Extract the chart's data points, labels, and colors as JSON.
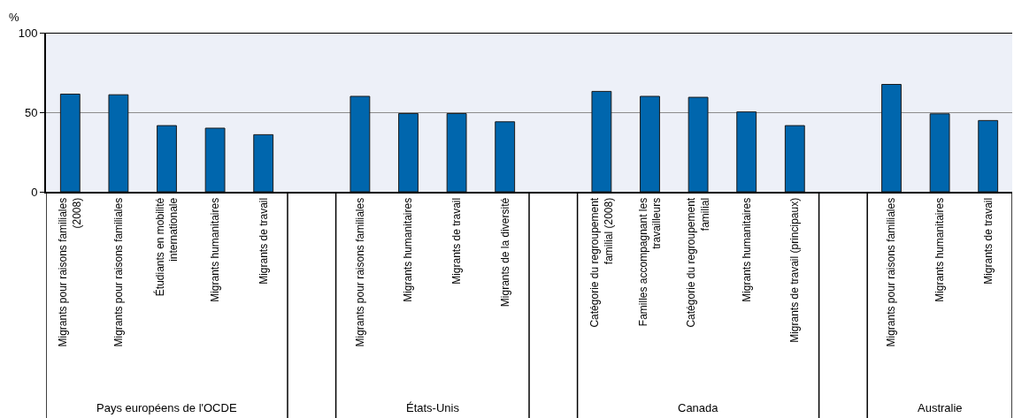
{
  "chart_data": {
    "type": "bar",
    "ylabel": "%",
    "categories": [
      "Migrants pour raisons familiales\n(2008)",
      "Migrants pour raisons familiales",
      "Étudiants en mobilité\ninternationale",
      "Migrants humanitaires",
      "Migrants de travail",
      null,
      "Migrants pour raisons familiales",
      "Migrants humanitaires",
      "Migrants de travail",
      "Migrants de la diversité",
      null,
      "Catégorie du regroupement\nfamilial (2008)",
      "Familles accompagnant les\ntravailleurs",
      "Catégorie du regroupement\nfamilial",
      "Migrants humanitaires",
      "Migrants de travail (principaux)",
      null,
      "Migrants pour raisons familiales",
      "Migrants humanitaires",
      "Migrants de travail"
    ],
    "values": [
      61.4,
      61.0,
      41.6,
      40.0,
      35.9,
      null,
      60.0,
      49.2,
      49.2,
      44.0,
      null,
      63.1,
      60.0,
      59.4,
      50.2,
      41.6,
      null,
      67.5,
      49.0,
      44.8
    ],
    "color": "#0066ad",
    "ylim": [
      0,
      100
    ],
    "yticks": [
      0,
      50,
      100
    ],
    "grid": "y",
    "annotations": [
      "Pays européens de l'OCDE",
      "États-Unis",
      "Canada",
      "Australie"
    ]
  }
}
